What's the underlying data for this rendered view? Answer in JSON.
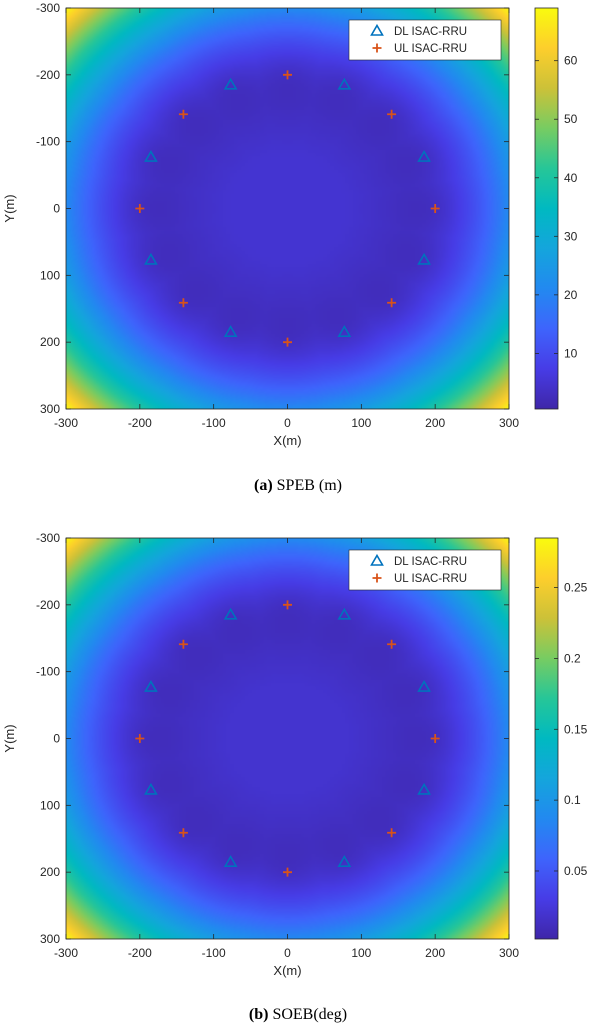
{
  "chart_data": [
    {
      "type": "heatmap",
      "caption_tag": "(a)",
      "caption_text": " SPEB (m)",
      "xlabel": "X(m)",
      "ylabel": "Y(m)",
      "xlim": [
        -300,
        300
      ],
      "ylim": [
        -300,
        300
      ],
      "y_reversed": true,
      "xticks": [
        -300,
        -200,
        -100,
        0,
        100,
        200,
        300
      ],
      "yticks": [
        -300,
        -200,
        -100,
        0,
        100,
        200,
        300
      ],
      "colorbar_range": [
        0.5,
        69
      ],
      "colorbar_ticks": [
        10,
        20,
        30,
        40,
        50,
        60
      ],
      "colormap": "parula",
      "legend_position": "top-right",
      "field_center_value": 5,
      "field_corner_value": 69,
      "series": [
        {
          "name": "DL ISAC-RRU",
          "marker": "triangle",
          "color": "#0072BD",
          "points": [
            [
              -77,
              -185
            ],
            [
              77,
              -185
            ],
            [
              -185,
              -77
            ],
            [
              185,
              -77
            ],
            [
              -185,
              77
            ],
            [
              185,
              77
            ],
            [
              -77,
              185
            ],
            [
              77,
              185
            ]
          ]
        },
        {
          "name": "UL ISAC-RRU",
          "marker": "plus",
          "color": "#D95319",
          "points": [
            [
              0,
              -200
            ],
            [
              -141,
              -141
            ],
            [
              141,
              -141
            ],
            [
              -200,
              0
            ],
            [
              200,
              0
            ],
            [
              -141,
              141
            ],
            [
              141,
              141
            ],
            [
              0,
              200
            ]
          ]
        }
      ]
    },
    {
      "type": "heatmap",
      "caption_tag": "(b)",
      "caption_text": " SOEB(deg)",
      "xlabel": "X(m)",
      "ylabel": "Y(m)",
      "xlim": [
        -300,
        300
      ],
      "ylim": [
        -300,
        300
      ],
      "y_reversed": true,
      "xticks": [
        -300,
        -200,
        -100,
        0,
        100,
        200,
        300
      ],
      "yticks": [
        -300,
        -200,
        -100,
        0,
        100,
        200,
        300
      ],
      "colorbar_range": [
        0.002,
        0.285
      ],
      "colorbar_ticks": [
        0.05,
        0.1,
        0.15,
        0.2,
        0.25
      ],
      "colormap": "parula",
      "legend_position": "top-right",
      "field_center_value": 0.02,
      "field_corner_value": 0.285,
      "series": [
        {
          "name": "DL ISAC-RRU",
          "marker": "triangle",
          "color": "#0072BD",
          "points": [
            [
              -77,
              -185
            ],
            [
              77,
              -185
            ],
            [
              -185,
              -77
            ],
            [
              185,
              -77
            ],
            [
              -185,
              77
            ],
            [
              185,
              77
            ],
            [
              -77,
              185
            ],
            [
              77,
              185
            ]
          ]
        },
        {
          "name": "UL ISAC-RRU",
          "marker": "plus",
          "color": "#D95319",
          "points": [
            [
              0,
              -200
            ],
            [
              -141,
              -141
            ],
            [
              141,
              -141
            ],
            [
              -200,
              0
            ],
            [
              200,
              0
            ],
            [
              -141,
              141
            ],
            [
              141,
              141
            ],
            [
              0,
              200
            ]
          ]
        }
      ]
    }
  ]
}
